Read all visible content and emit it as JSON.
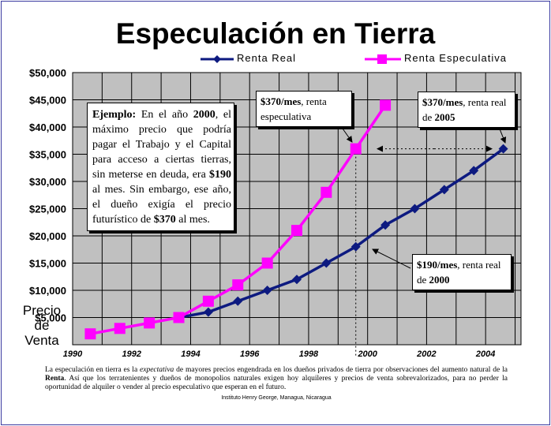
{
  "chart_data": {
    "type": "line",
    "title": "Especulación en Tierra",
    "ylabel": "Precio de Venta",
    "xlabel": "",
    "x_ticks": [
      "1990",
      "1992",
      "1994",
      "1996",
      "1998",
      "2000",
      "2002",
      "2004"
    ],
    "y_ticks": [
      "$50,000",
      "$45,000",
      "$40,000",
      "$35,000",
      "$30,000",
      "$25,000",
      "$20,000",
      "$15,000",
      "$10,000",
      "$5,000"
    ],
    "xlim": [
      1990,
      2005.2
    ],
    "ylim": [
      0,
      50000
    ],
    "grid": true,
    "legend_position": "top",
    "series": [
      {
        "name": "Renta Real",
        "color": "#0d1a80",
        "marker": "diamond",
        "x": [
          1993.6,
          1994.6,
          1995.6,
          1996.6,
          1997.6,
          1998.6,
          1999.6,
          2000.6,
          2001.6,
          2002.6,
          2003.6,
          2004.6
        ],
        "values": [
          5000,
          6000,
          8000,
          10000,
          12000,
          15000,
          18000,
          22000,
          25000,
          28500,
          32000,
          36000
        ]
      },
      {
        "name": "Renta Especulativa",
        "color": "#ff00ff",
        "marker": "square",
        "x": [
          1990.6,
          1991.6,
          1992.6,
          1993.6,
          1994.6,
          1995.6,
          1996.6,
          1997.6,
          1998.6,
          1999.6,
          2000.6
        ],
        "values": [
          2000,
          3000,
          4000,
          5000,
          8000,
          11000,
          15000,
          21000,
          28000,
          36000,
          44000
        ]
      }
    ]
  },
  "notes": {
    "ejemplo_bold": "Ejemplo:",
    "ejemplo_text1": " En el año ",
    "ejemplo_year": "2000",
    "ejemplo_text2": ", el máximo precio que podría pagar el Trabajo y el Capital para acceso a ciertas tierras, sin meterse en deuda, era ",
    "ejemplo_val1": "$190",
    "ejemplo_text3": " al mes. Sin embargo, ese año, el dueño exigía  el precio futurístico de ",
    "ejemplo_val2": "$370",
    "ejemplo_text4": " al mes.",
    "spec_bold": "$370/mes",
    "spec_text": ", renta especulativa",
    "real2005_bold": "$370/mes",
    "real2005_text": ", renta real de ",
    "real2005_year": "2005",
    "real2000_bold": "$190/mes",
    "real2000_text": ", renta real de ",
    "real2000_year": "2000"
  },
  "footer": {
    "text1": "La especulación en tierra es la ",
    "text_italic": "expectativa",
    "text2": " de mayores precios engendrada en los dueños privados de tierra por observaciones del aumento natural de la ",
    "text_bold": "Renta",
    "text3": ". Así que los terratenientes y dueños de monopolios naturales exigen hoy alquileres y precios de venta sobrevalorizados, para no perder la oportunidad de alquiler o vender al precio especulativo que esperan en el futuro.",
    "source": "Instituto Henry George, Managua, Nicaragua"
  },
  "colors": {
    "plot_background": "#c0c0c0",
    "grid": "#000000",
    "frame": "#3a3aa0"
  }
}
